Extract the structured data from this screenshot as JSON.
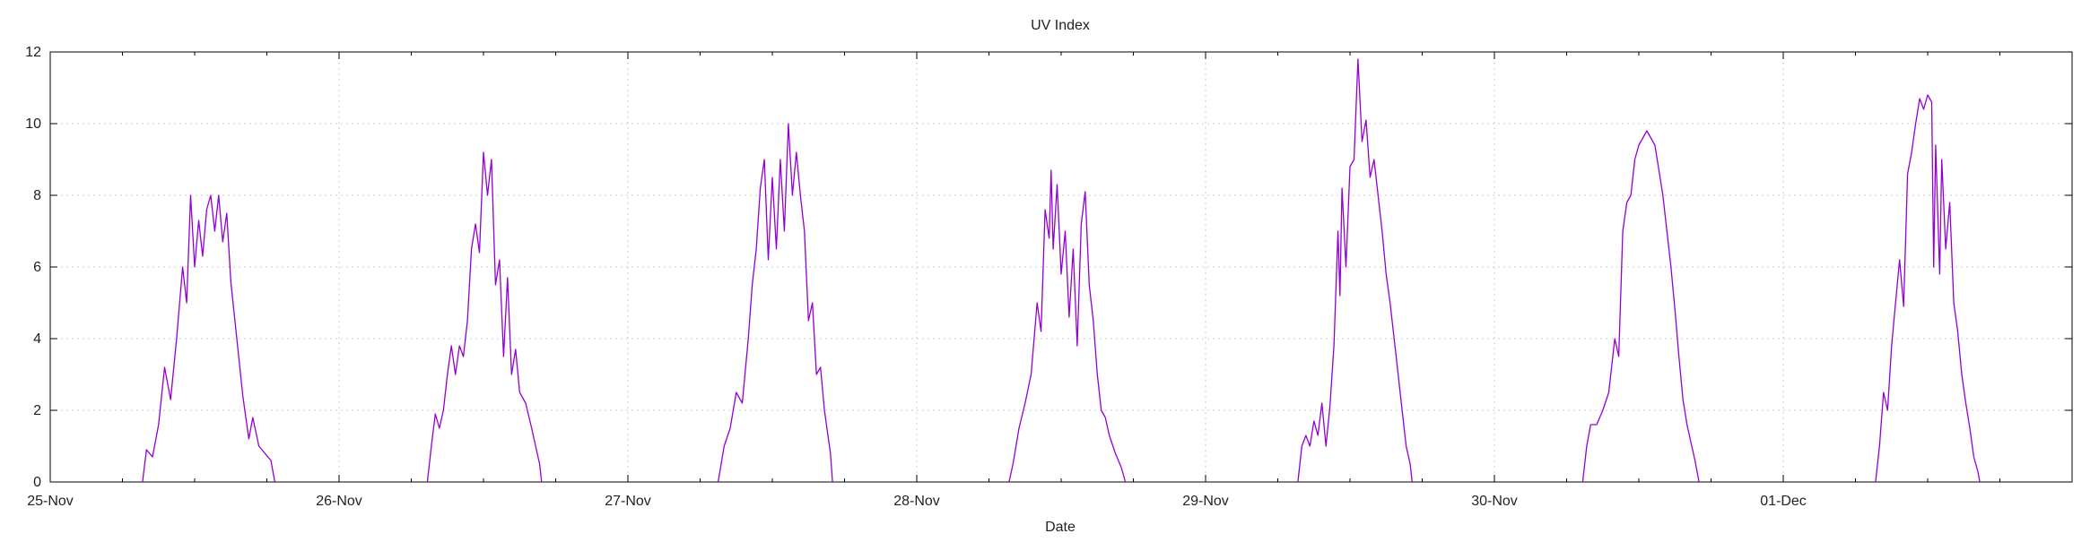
{
  "chart_data": {
    "type": "line",
    "title": "UV Index",
    "xlabel": "Date",
    "ylabel": "",
    "ylim": [
      0,
      12
    ],
    "y_ticks": [
      0,
      2,
      4,
      6,
      8,
      10,
      12
    ],
    "xlim": [
      "2024-11-25",
      "2024-12-02"
    ],
    "x_ticks": [
      {
        "date": "2024-11-25",
        "label": "25-Nov"
      },
      {
        "date": "2024-11-26",
        "label": "26-Nov"
      },
      {
        "date": "2024-11-27",
        "label": "27-Nov"
      },
      {
        "date": "2024-11-28",
        "label": "28-Nov"
      },
      {
        "date": "2024-11-29",
        "label": "29-Nov"
      },
      {
        "date": "2024-11-30",
        "label": "30-Nov"
      },
      {
        "date": "2024-12-01",
        "label": "01-Dec"
      }
    ],
    "grid": true,
    "legend": "none",
    "series": [
      {
        "color": "#9400d3",
        "points": [
          [
            "2024-11-25 07:40",
            0.0
          ],
          [
            "2024-11-25 08:00",
            0.9
          ],
          [
            "2024-11-25 08:30",
            0.7
          ],
          [
            "2024-11-25 09:00",
            1.6
          ],
          [
            "2024-11-25 09:30",
            3.2
          ],
          [
            "2024-11-25 10:00",
            2.3
          ],
          [
            "2024-11-25 10:30",
            4.0
          ],
          [
            "2024-11-25 11:00",
            6.0
          ],
          [
            "2024-11-25 11:20",
            5.0
          ],
          [
            "2024-11-25 11:40",
            8.0
          ],
          [
            "2024-11-25 12:00",
            6.0
          ],
          [
            "2024-11-25 12:20",
            7.3
          ],
          [
            "2024-11-25 12:40",
            6.3
          ],
          [
            "2024-11-25 13:00",
            7.6
          ],
          [
            "2024-11-25 13:20",
            8.0
          ],
          [
            "2024-11-25 13:40",
            7.0
          ],
          [
            "2024-11-25 14:00",
            8.0
          ],
          [
            "2024-11-25 14:20",
            6.7
          ],
          [
            "2024-11-25 14:40",
            7.5
          ],
          [
            "2024-11-25 15:00",
            5.6
          ],
          [
            "2024-11-25 15:30",
            4.0
          ],
          [
            "2024-11-25 16:00",
            2.4
          ],
          [
            "2024-11-25 16:30",
            1.2
          ],
          [
            "2024-11-25 16:50",
            1.8
          ],
          [
            "2024-11-25 17:20",
            1.0
          ],
          [
            "2024-11-25 17:50",
            0.8
          ],
          [
            "2024-11-25 18:20",
            0.6
          ],
          [
            "2024-11-25 18:40",
            0.0
          ],
          null,
          [
            "2024-11-26 07:20",
            0.0
          ],
          [
            "2024-11-26 07:40",
            1.0
          ],
          [
            "2024-11-26 08:00",
            1.9
          ],
          [
            "2024-11-26 08:20",
            1.5
          ],
          [
            "2024-11-26 08:40",
            2.0
          ],
          [
            "2024-11-26 09:00",
            3.0
          ],
          [
            "2024-11-26 09:20",
            3.8
          ],
          [
            "2024-11-26 09:40",
            3.0
          ],
          [
            "2024-11-26 10:00",
            3.8
          ],
          [
            "2024-11-26 10:20",
            3.5
          ],
          [
            "2024-11-26 10:40",
            4.5
          ],
          [
            "2024-11-26 11:00",
            6.5
          ],
          [
            "2024-11-26 11:20",
            7.2
          ],
          [
            "2024-11-26 11:40",
            6.4
          ],
          [
            "2024-11-26 12:00",
            9.2
          ],
          [
            "2024-11-26 12:20",
            8.0
          ],
          [
            "2024-11-26 12:40",
            9.0
          ],
          [
            "2024-11-26 13:00",
            5.5
          ],
          [
            "2024-11-26 13:20",
            6.2
          ],
          [
            "2024-11-26 13:40",
            3.5
          ],
          [
            "2024-11-26 14:00",
            5.7
          ],
          [
            "2024-11-26 14:20",
            3.0
          ],
          [
            "2024-11-26 14:40",
            3.7
          ],
          [
            "2024-11-26 15:00",
            2.5
          ],
          [
            "2024-11-26 15:30",
            2.2
          ],
          [
            "2024-11-26 16:00",
            1.5
          ],
          [
            "2024-11-26 16:20",
            1.0
          ],
          [
            "2024-11-26 16:40",
            0.5
          ],
          [
            "2024-11-26 16:50",
            0.0
          ],
          null,
          [
            "2024-11-27 07:30",
            0.0
          ],
          [
            "2024-11-27 08:00",
            1.0
          ],
          [
            "2024-11-27 08:30",
            1.5
          ],
          [
            "2024-11-27 09:00",
            2.5
          ],
          [
            "2024-11-27 09:30",
            2.2
          ],
          [
            "2024-11-27 10:00",
            4.0
          ],
          [
            "2024-11-27 10:20",
            5.5
          ],
          [
            "2024-11-27 10:40",
            6.5
          ],
          [
            "2024-11-27 11:00",
            8.2
          ],
          [
            "2024-11-27 11:20",
            9.0
          ],
          [
            "2024-11-27 11:40",
            6.2
          ],
          [
            "2024-11-27 12:00",
            8.5
          ],
          [
            "2024-11-27 12:20",
            6.5
          ],
          [
            "2024-11-27 12:40",
            9.0
          ],
          [
            "2024-11-27 13:00",
            7.0
          ],
          [
            "2024-11-27 13:20",
            10.0
          ],
          [
            "2024-11-27 13:40",
            8.0
          ],
          [
            "2024-11-27 14:00",
            9.2
          ],
          [
            "2024-11-27 14:20",
            8.0
          ],
          [
            "2024-11-27 14:40",
            7.0
          ],
          [
            "2024-11-27 15:00",
            4.5
          ],
          [
            "2024-11-27 15:20",
            5.0
          ],
          [
            "2024-11-27 15:40",
            3.0
          ],
          [
            "2024-11-27 16:00",
            3.2
          ],
          [
            "2024-11-27 16:20",
            2.0
          ],
          [
            "2024-11-27 16:50",
            0.8
          ],
          [
            "2024-11-27 17:00",
            0.0
          ],
          null,
          [
            "2024-11-28 07:40",
            0.0
          ],
          [
            "2024-11-28 08:00",
            0.5
          ],
          [
            "2024-11-28 08:30",
            1.5
          ],
          [
            "2024-11-28 09:00",
            2.2
          ],
          [
            "2024-11-28 09:30",
            3.0
          ],
          [
            "2024-11-28 10:00",
            5.0
          ],
          [
            "2024-11-28 10:20",
            4.2
          ],
          [
            "2024-11-28 10:40",
            7.6
          ],
          [
            "2024-11-28 11:00",
            6.8
          ],
          [
            "2024-11-28 11:10",
            8.7
          ],
          [
            "2024-11-28 11:20",
            6.5
          ],
          [
            "2024-11-28 11:40",
            8.3
          ],
          [
            "2024-11-28 12:00",
            5.8
          ],
          [
            "2024-11-28 12:20",
            7.0
          ],
          [
            "2024-11-28 12:40",
            4.6
          ],
          [
            "2024-11-28 13:00",
            6.5
          ],
          [
            "2024-11-28 13:20",
            3.8
          ],
          [
            "2024-11-28 13:40",
            7.2
          ],
          [
            "2024-11-28 14:00",
            8.1
          ],
          [
            "2024-11-28 14:20",
            5.5
          ],
          [
            "2024-11-28 14:40",
            4.5
          ],
          [
            "2024-11-28 15:00",
            3.0
          ],
          [
            "2024-11-28 15:20",
            2.0
          ],
          [
            "2024-11-28 15:40",
            1.8
          ],
          [
            "2024-11-28 16:00",
            1.3
          ],
          [
            "2024-11-28 16:30",
            0.8
          ],
          [
            "2024-11-28 17:00",
            0.4
          ],
          [
            "2024-11-28 17:20",
            0.0
          ],
          null,
          [
            "2024-11-29 07:40",
            0.0
          ],
          [
            "2024-11-29 08:00",
            1.0
          ],
          [
            "2024-11-29 08:20",
            1.3
          ],
          [
            "2024-11-29 08:40",
            1.0
          ],
          [
            "2024-11-29 09:00",
            1.7
          ],
          [
            "2024-11-29 09:20",
            1.3
          ],
          [
            "2024-11-29 09:40",
            2.2
          ],
          [
            "2024-11-29 10:00",
            1.0
          ],
          [
            "2024-11-29 10:20",
            2.1
          ],
          [
            "2024-11-29 10:40",
            3.8
          ],
          [
            "2024-11-29 11:00",
            7.0
          ],
          [
            "2024-11-29 11:10",
            5.2
          ],
          [
            "2024-11-29 11:20",
            8.2
          ],
          [
            "2024-11-29 11:40",
            6.0
          ],
          [
            "2024-11-29 12:00",
            8.8
          ],
          [
            "2024-11-29 12:20",
            9.0
          ],
          [
            "2024-11-29 12:40",
            11.8
          ],
          [
            "2024-11-29 13:00",
            9.5
          ],
          [
            "2024-11-29 13:20",
            10.1
          ],
          [
            "2024-11-29 13:40",
            8.5
          ],
          [
            "2024-11-29 14:00",
            9.0
          ],
          [
            "2024-11-29 14:20",
            8.0
          ],
          [
            "2024-11-29 14:40",
            7.0
          ],
          [
            "2024-11-29 15:00",
            5.8
          ],
          [
            "2024-11-29 15:20",
            5.0
          ],
          [
            "2024-11-29 15:40",
            4.0
          ],
          [
            "2024-11-29 16:00",
            3.0
          ],
          [
            "2024-11-29 16:20",
            2.0
          ],
          [
            "2024-11-29 16:40",
            1.0
          ],
          [
            "2024-11-29 17:00",
            0.5
          ],
          [
            "2024-11-29 17:10",
            0.0
          ],
          null,
          [
            "2024-11-30 07:20",
            0.0
          ],
          [
            "2024-11-30 07:40",
            1.0
          ],
          [
            "2024-11-30 08:00",
            1.6
          ],
          [
            "2024-11-30 08:30",
            1.6
          ],
          [
            "2024-11-30 09:00",
            2.0
          ],
          [
            "2024-11-30 09:30",
            2.5
          ],
          [
            "2024-11-30 10:00",
            4.0
          ],
          [
            "2024-11-30 10:20",
            3.5
          ],
          [
            "2024-11-30 10:40",
            7.0
          ],
          [
            "2024-11-30 11:00",
            7.8
          ],
          [
            "2024-11-30 11:20",
            8.0
          ],
          [
            "2024-11-30 11:40",
            9.0
          ],
          [
            "2024-11-30 12:00",
            9.4
          ],
          [
            "2024-11-30 12:20",
            9.6
          ],
          [
            "2024-11-30 12:40",
            9.8
          ],
          [
            "2024-11-30 13:00",
            9.6
          ],
          [
            "2024-11-30 13:20",
            9.4
          ],
          [
            "2024-11-30 13:40",
            8.7
          ],
          [
            "2024-11-30 14:00",
            8.0
          ],
          [
            "2024-11-30 14:20",
            7.0
          ],
          [
            "2024-11-30 14:40",
            6.0
          ],
          [
            "2024-11-30 15:00",
            4.8
          ],
          [
            "2024-11-30 15:20",
            3.5
          ],
          [
            "2024-11-30 15:40",
            2.3
          ],
          [
            "2024-11-30 16:00",
            1.6
          ],
          [
            "2024-11-30 16:20",
            1.1
          ],
          [
            "2024-11-30 16:40",
            0.6
          ],
          [
            "2024-11-30 17:00",
            0.0
          ],
          null,
          [
            "2024-12-01 07:40",
            0.0
          ],
          [
            "2024-12-01 08:00",
            1.0
          ],
          [
            "2024-12-01 08:20",
            2.5
          ],
          [
            "2024-12-01 08:40",
            2.0
          ],
          [
            "2024-12-01 09:00",
            3.8
          ],
          [
            "2024-12-01 09:20",
            5.0
          ],
          [
            "2024-12-01 09:40",
            6.2
          ],
          [
            "2024-12-01 10:00",
            4.9
          ],
          [
            "2024-12-01 10:20",
            8.6
          ],
          [
            "2024-12-01 10:40",
            9.2
          ],
          [
            "2024-12-01 11:00",
            10.0
          ],
          [
            "2024-12-01 11:20",
            10.7
          ],
          [
            "2024-12-01 11:40",
            10.4
          ],
          [
            "2024-12-01 12:00",
            10.8
          ],
          [
            "2024-12-01 12:20",
            10.6
          ],
          [
            "2024-12-01 12:30",
            6.0
          ],
          [
            "2024-12-01 12:40",
            9.4
          ],
          [
            "2024-12-01 13:00",
            5.8
          ],
          [
            "2024-12-01 13:10",
            9.0
          ],
          [
            "2024-12-01 13:30",
            6.5
          ],
          [
            "2024-12-01 13:50",
            7.8
          ],
          [
            "2024-12-01 14:10",
            5.0
          ],
          [
            "2024-12-01 14:30",
            4.2
          ],
          [
            "2024-12-01 14:50",
            3.0
          ],
          [
            "2024-12-01 15:10",
            2.2
          ],
          [
            "2024-12-01 15:30",
            1.5
          ],
          [
            "2024-12-01 15:50",
            0.7
          ],
          [
            "2024-12-01 16:10",
            0.3
          ],
          [
            "2024-12-01 16:20",
            0.0
          ]
        ]
      }
    ]
  }
}
